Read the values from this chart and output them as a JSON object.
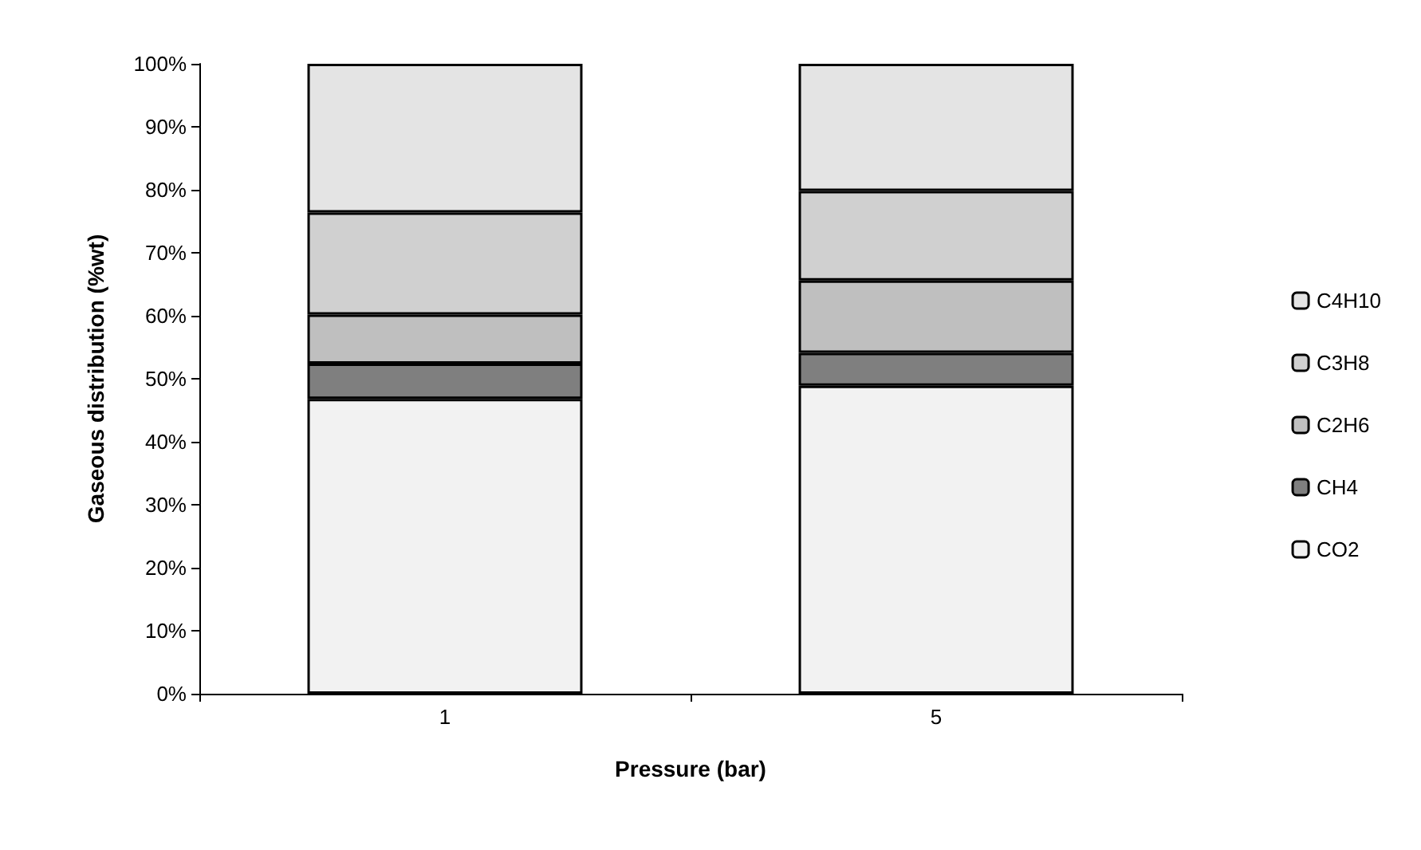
{
  "chart_data": {
    "type": "bar",
    "stacked": true,
    "xlabel": "Pressure (bar)",
    "ylabel": "Gaseous distribution (%wt)",
    "categories": [
      "1",
      "5"
    ],
    "series": [
      {
        "name": "CO2",
        "color": "#f2f2f2",
        "values": [
          46.8,
          48.9
        ]
      },
      {
        "name": "CH4",
        "color": "#7f7f7f",
        "values": [
          5.6,
          5.2
        ]
      },
      {
        "name": "C2H6",
        "color": "#bfbfbf",
        "values": [
          7.8,
          11.5
        ]
      },
      {
        "name": "C3H8",
        "color": "#d0d0d0",
        "values": [
          16.2,
          14.2
        ]
      },
      {
        "name": "C4H10",
        "color": "#e4e4e4",
        "values": [
          23.6,
          20.2
        ]
      }
    ],
    "ylim": [
      0,
      100
    ],
    "yticks": [
      {
        "value": 0,
        "label": "0%"
      },
      {
        "value": 10,
        "label": "10%"
      },
      {
        "value": 20,
        "label": "20%"
      },
      {
        "value": 30,
        "label": "30%"
      },
      {
        "value": 40,
        "label": "40%"
      },
      {
        "value": 50,
        "label": "50%"
      },
      {
        "value": 60,
        "label": "60%"
      },
      {
        "value": 70,
        "label": "70%"
      },
      {
        "value": 80,
        "label": "80%"
      },
      {
        "value": 90,
        "label": "90%"
      },
      {
        "value": 100,
        "label": "100%"
      }
    ],
    "grid": false,
    "legend": "right"
  }
}
